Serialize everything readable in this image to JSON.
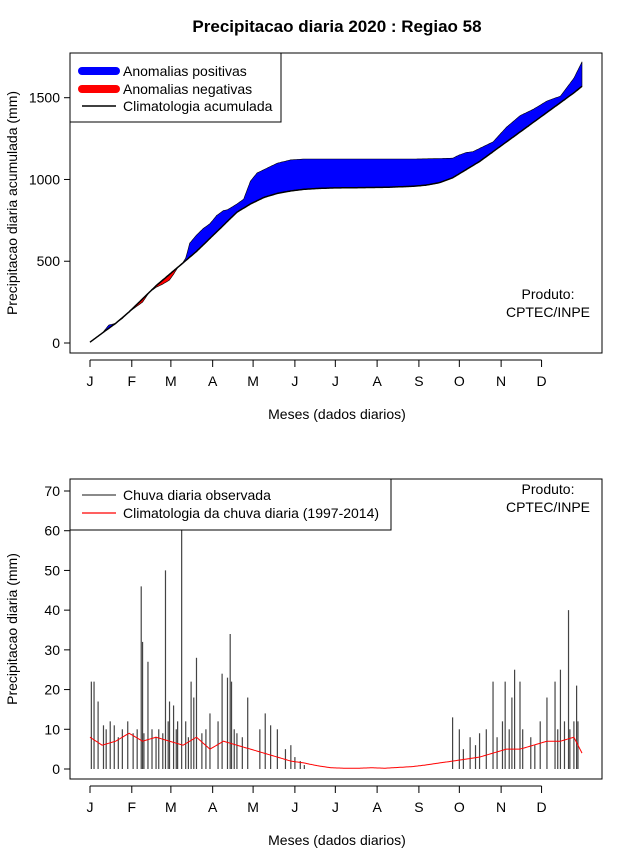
{
  "colors": {
    "positive": "#0000ff",
    "negative": "#ff0000",
    "climatology_line": "#000000",
    "observed_bars": "#444444",
    "climatology_daily": "#ff0000"
  },
  "chart_data": [
    {
      "type": "area",
      "title": "Precipitacao diaria 2020 : Regiao 58",
      "xlabel": "Meses (dados diarios)",
      "ylabel": "Precipitacao diaria acumulada (mm)",
      "xlim": [
        1,
        366
      ],
      "ylim": [
        0,
        1700
      ],
      "yticks": [
        0,
        500,
        1000,
        1500
      ],
      "month_labels": [
        "J",
        "F",
        "M",
        "A",
        "M",
        "J",
        "J",
        "A",
        "S",
        "O",
        "N",
        "D"
      ],
      "month_days": [
        1,
        32,
        61,
        92,
        122,
        153,
        183,
        214,
        245,
        275,
        306,
        336
      ],
      "legend": [
        {
          "label": "Anomalias positivas",
          "style": "thick-blue"
        },
        {
          "label": "Anomalias negativas",
          "style": "thick-red"
        },
        {
          "label": "Climatologia acumulada",
          "style": "line-black"
        }
      ],
      "legend_position": "top-left",
      "annotation": [
        "Produto:",
        "CPTEC/INPE"
      ],
      "series": [
        {
          "name": "Observado acumulado",
          "day": [
            1,
            5,
            10,
            15,
            20,
            25,
            30,
            35,
            40,
            45,
            50,
            55,
            60,
            63,
            66,
            69,
            72,
            75,
            80,
            85,
            90,
            95,
            100,
            103,
            106,
            110,
            115,
            120,
            125,
            130,
            140,
            150,
            160,
            170,
            180,
            190,
            200,
            220,
            240,
            260,
            270,
            275,
            280,
            285,
            290,
            300,
            310,
            320,
            330,
            340,
            350,
            360,
            366
          ],
          "values": [
            5,
            30,
            60,
            110,
            120,
            150,
            190,
            220,
            250,
            310,
            340,
            360,
            385,
            420,
            460,
            480,
            520,
            610,
            660,
            700,
            730,
            780,
            810,
            815,
            830,
            850,
            880,
            990,
            1040,
            1060,
            1100,
            1120,
            1125,
            1125,
            1125,
            1125,
            1125,
            1125,
            1125,
            1128,
            1130,
            1150,
            1165,
            1170,
            1190,
            1230,
            1320,
            1390,
            1430,
            1480,
            1510,
            1620,
            1720
          ]
        },
        {
          "name": "Climatologia acumulada",
          "day": [
            1,
            10,
            20,
            30,
            40,
            50,
            60,
            70,
            80,
            90,
            100,
            110,
            120,
            130,
            140,
            150,
            160,
            170,
            180,
            200,
            220,
            240,
            250,
            260,
            270,
            280,
            290,
            300,
            310,
            320,
            330,
            340,
            350,
            360,
            366
          ],
          "values": [
            5,
            60,
            120,
            190,
            270,
            350,
            420,
            490,
            560,
            640,
            720,
            800,
            850,
            890,
            915,
            930,
            940,
            945,
            948,
            950,
            952,
            958,
            965,
            980,
            1010,
            1060,
            1110,
            1170,
            1230,
            1290,
            1350,
            1410,
            1470,
            1530,
            1570
          ]
        }
      ]
    },
    {
      "type": "bar",
      "xlabel": "Meses (dados diarios)",
      "ylabel": "Precipitacao diaria (mm)",
      "xlim": [
        1,
        366
      ],
      "ylim": [
        0,
        70
      ],
      "yticks": [
        0,
        10,
        20,
        30,
        40,
        50,
        60,
        70
      ],
      "month_labels": [
        "J",
        "F",
        "M",
        "A",
        "M",
        "J",
        "J",
        "A",
        "S",
        "O",
        "N",
        "D"
      ],
      "month_days": [
        1,
        32,
        61,
        92,
        122,
        153,
        183,
        214,
        245,
        275,
        306,
        336
      ],
      "legend": [
        {
          "label": "Chuva diaria observada",
          "style": "line-gray"
        },
        {
          "label": "Climatologia da chuva diaria (1997-2014)",
          "style": "line-red"
        }
      ],
      "legend_position": "top-left",
      "annotation": [
        "Produto:",
        "CPTEC/INPE"
      ],
      "series": [
        {
          "name": "Chuva diaria observada",
          "day": [
            2,
            4,
            7,
            11,
            13,
            16,
            19,
            22,
            25,
            29,
            33,
            36,
            39,
            40,
            41,
            44,
            47,
            50,
            52,
            55,
            57,
            59,
            60,
            63,
            65,
            66,
            69,
            72,
            74,
            76,
            78,
            80,
            84,
            87,
            90,
            96,
            99,
            103,
            105,
            106,
            108,
            110,
            114,
            118,
            127,
            131,
            135,
            140,
            146,
            150,
            153,
            157,
            160,
            270,
            275,
            278,
            283,
            287,
            290,
            295,
            300,
            303,
            307,
            309,
            312,
            314,
            316,
            320,
            322,
            328,
            331,
            335,
            340,
            346,
            348,
            350,
            353,
            356,
            357,
            360,
            362,
            363
          ],
          "values": [
            22,
            22,
            17,
            11,
            10,
            12,
            11,
            8,
            10,
            12,
            9,
            10,
            46,
            32,
            9,
            27,
            10,
            8,
            10,
            9,
            50,
            12,
            17,
            16,
            10,
            12,
            61,
            12,
            8,
            22,
            18,
            28,
            9,
            10,
            14,
            12,
            24,
            23,
            34,
            22,
            10,
            9,
            8,
            18,
            10,
            14,
            11,
            10,
            5,
            6,
            3,
            2,
            1,
            13,
            10,
            5,
            8,
            6,
            9,
            10,
            22,
            8,
            12,
            22,
            10,
            18,
            25,
            22,
            10,
            8,
            6,
            12,
            18,
            22,
            10,
            25,
            12,
            40,
            10,
            12,
            21,
            12
          ]
        },
        {
          "name": "Climatologia da chuva diaria (1997-2014)",
          "day": [
            1,
            10,
            20,
            30,
            40,
            50,
            60,
            70,
            80,
            90,
            100,
            110,
            120,
            130,
            140,
            150,
            160,
            170,
            180,
            190,
            200,
            210,
            220,
            230,
            240,
            250,
            260,
            270,
            280,
            290,
            300,
            310,
            320,
            330,
            340,
            350,
            360,
            366
          ],
          "values": [
            8,
            6,
            7,
            9,
            7,
            8,
            7,
            6,
            8,
            5,
            7,
            6,
            5,
            4,
            3,
            2,
            1.5,
            0.8,
            0.3,
            0.2,
            0.2,
            0.3,
            0.2,
            0.4,
            0.6,
            1,
            1.5,
            2,
            2.5,
            3,
            4,
            5,
            5,
            6,
            7,
            7,
            8,
            4
          ]
        }
      ]
    }
  ]
}
